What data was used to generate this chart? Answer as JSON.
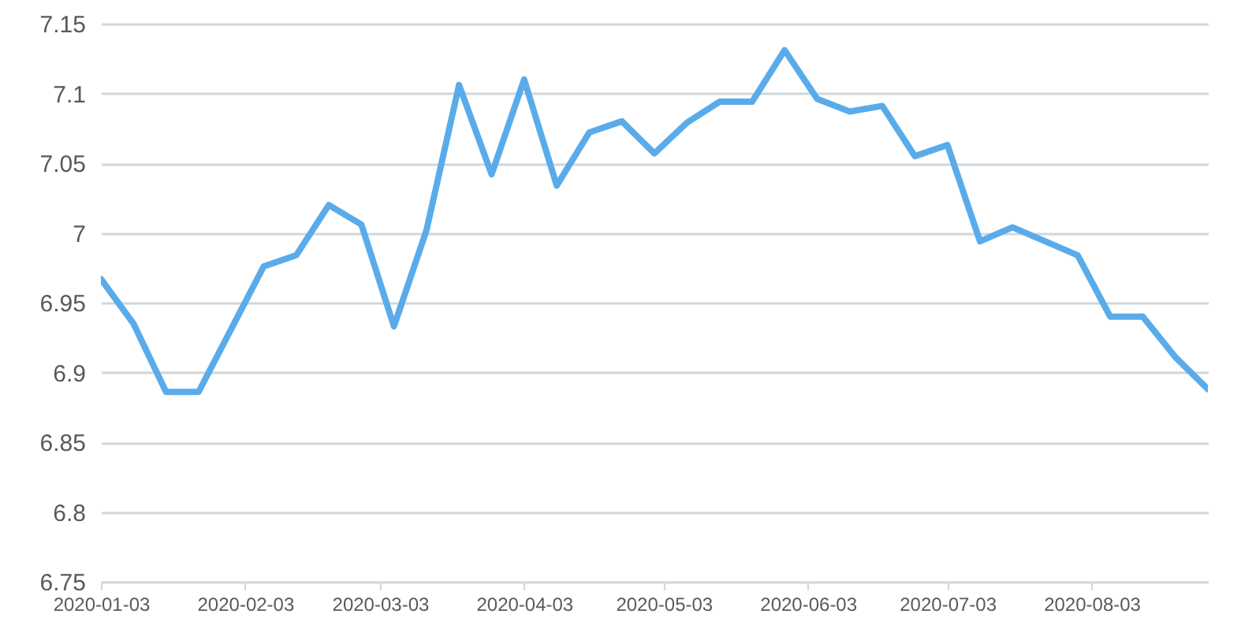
{
  "chart_data": {
    "type": "line",
    "x": [
      "2020-01-03",
      "2020-01-10",
      "2020-01-17",
      "2020-01-24",
      "2020-01-31",
      "2020-02-07",
      "2020-02-14",
      "2020-02-21",
      "2020-02-28",
      "2020-03-06",
      "2020-03-13",
      "2020-03-20",
      "2020-03-27",
      "2020-04-03",
      "2020-04-10",
      "2020-04-17",
      "2020-04-24",
      "2020-05-01",
      "2020-05-08",
      "2020-05-15",
      "2020-05-22",
      "2020-05-29",
      "2020-06-05",
      "2020-06-12",
      "2020-06-19",
      "2020-06-26",
      "2020-07-03",
      "2020-07-10",
      "2020-07-17",
      "2020-07-24",
      "2020-07-31",
      "2020-08-07",
      "2020-08-14",
      "2020-08-21",
      "2020-08-28"
    ],
    "series": [
      {
        "color": "#5aabea",
        "values": [
          6.967,
          6.935,
          6.886,
          6.886,
          6.931,
          6.976,
          6.984,
          7.02,
          7.006,
          6.933,
          7.002,
          7.106,
          7.042,
          7.11,
          7.034,
          7.072,
          7.08,
          7.057,
          7.079,
          7.094,
          7.094,
          7.131,
          7.096,
          7.087,
          7.091,
          7.055,
          7.063,
          6.994,
          7.004,
          6.994,
          6.984,
          6.94,
          6.94,
          6.911,
          6.888
        ]
      }
    ],
    "xlim": [
      "2020-01-03",
      "2020-08-28"
    ],
    "xticks": [
      "2020-01-03",
      "2020-02-03",
      "2020-03-03",
      "2020-04-03",
      "2020-05-03",
      "2020-06-03",
      "2020-07-03",
      "2020-08-03"
    ],
    "ylim": [
      6.75,
      7.15
    ],
    "yticks": [
      6.75,
      6.8,
      6.85,
      6.9,
      6.95,
      7,
      7.05,
      7.1,
      7.15
    ],
    "grid": "y",
    "marker": "none",
    "line_style": "solid"
  }
}
